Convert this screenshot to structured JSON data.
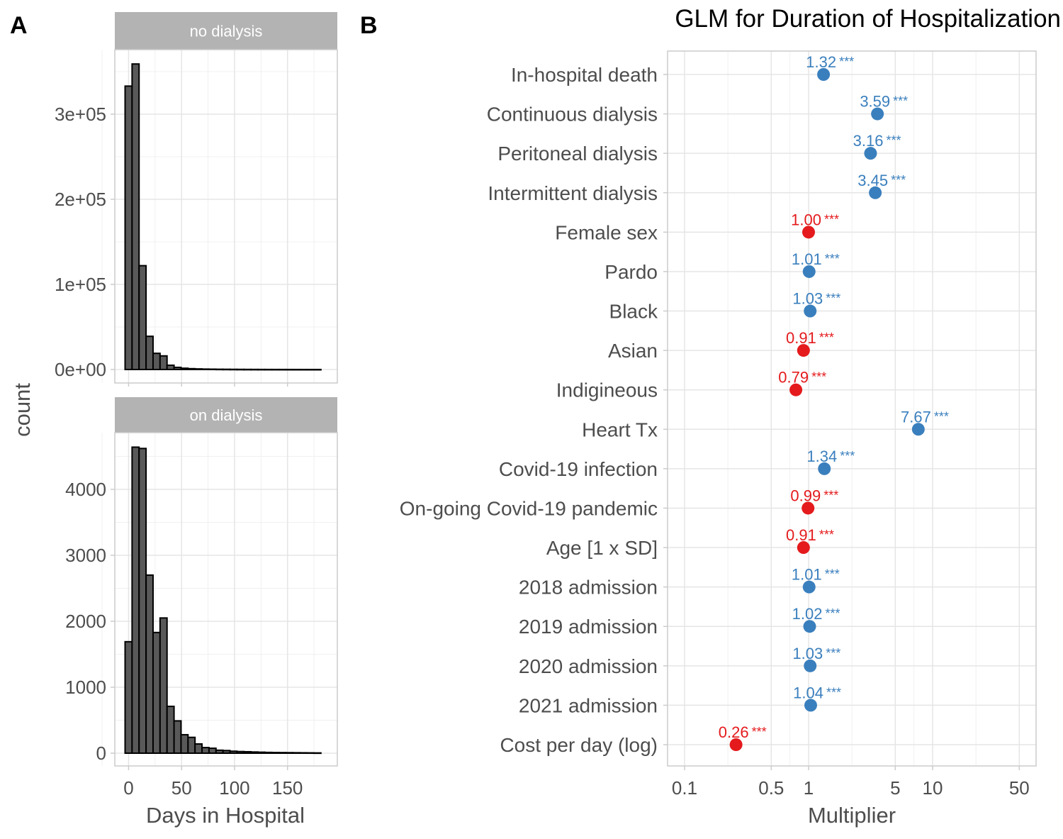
{
  "chart_data": [
    {
      "type": "bar",
      "panel_label": "A",
      "facets": [
        {
          "strip": "no dialysis",
          "y_ticks": [
            "0e+00",
            "1e+05",
            "2e+05",
            "3e+05"
          ],
          "y_tick_values": [
            0,
            100000,
            200000,
            300000
          ],
          "ylim": [
            0,
            370000
          ],
          "bins_start": -3.3,
          "bin_width": 6.6,
          "values": [
            333000,
            359000,
            122000,
            39000,
            19000,
            16000,
            5000,
            2500,
            1500,
            1000,
            700,
            500,
            400,
            300,
            250,
            200,
            150,
            120,
            100,
            80,
            60,
            50,
            40,
            30,
            20,
            15,
            10,
            8
          ]
        },
        {
          "strip": "on dialysis",
          "y_ticks": [
            "0",
            "1000",
            "2000",
            "3000",
            "4000"
          ],
          "y_tick_values": [
            0,
            1000,
            2000,
            3000,
            4000
          ],
          "ylim": [
            0,
            4900
          ],
          "bins_start": -3.3,
          "bin_width": 6.6,
          "values": [
            1690,
            4640,
            4620,
            2700,
            1830,
            2050,
            710,
            490,
            280,
            240,
            140,
            85,
            75,
            45,
            40,
            30,
            25,
            22,
            18,
            15,
            12,
            10,
            9,
            8,
            7,
            6,
            5,
            4
          ]
        }
      ],
      "x_ticks": [
        "0",
        "50",
        "100",
        "150"
      ],
      "x_tick_values": [
        0,
        50,
        100,
        150
      ],
      "xlim": [
        -13,
        197
      ],
      "xlabel": "Days in Hospital",
      "ylabel": "count",
      "grid": true
    },
    {
      "type": "scatter",
      "panel_label": "B",
      "title": "GLM for Duration of Hospitalization",
      "xlabel": "Multiplier",
      "x_scale": "log10",
      "xlim": [
        0.087,
        68
      ],
      "x_ticks": [
        "0.1",
        "0.5",
        "1",
        "5",
        "10",
        "50"
      ],
      "x_tick_values": [
        0.1,
        0.5,
        1,
        5,
        10,
        50
      ],
      "grid": true,
      "colors": {
        "increase": "#3a7fbd",
        "decrease": "#e41a1c"
      },
      "categories": [
        "In-hospital death",
        "Continuous dialysis",
        "Peritoneal dialysis",
        "Intermittent dialysis",
        "Female sex",
        "Pardo",
        "Black",
        "Asian",
        "Indigineous",
        "Heart Tx",
        "Covid-19 infection",
        "On-going Covid-19 pandemic",
        "Age [1 x SD]",
        "2018 admission",
        "2019 admission",
        "2020 admission",
        "2021 admission",
        "Cost per day (log)"
      ],
      "values": [
        1.32,
        3.59,
        3.16,
        3.45,
        1.0,
        1.01,
        1.03,
        0.91,
        0.79,
        7.67,
        1.34,
        0.99,
        0.91,
        1.01,
        1.02,
        1.03,
        1.04,
        0.26
      ],
      "labels": [
        "1.32",
        "3.59",
        "3.16",
        "3.45",
        "1.00",
        "1.01",
        "1.03",
        "0.91",
        "0.79",
        "7.67",
        "1.34",
        "0.99",
        "0.91",
        "1.01",
        "1.02",
        "1.03",
        "1.04",
        "0.26"
      ],
      "direction": [
        "increase",
        "increase",
        "increase",
        "increase",
        "decrease",
        "increase",
        "increase",
        "decrease",
        "decrease",
        "increase",
        "increase",
        "decrease",
        "decrease",
        "increase",
        "increase",
        "increase",
        "increase",
        "decrease"
      ],
      "significance": "***"
    }
  ]
}
